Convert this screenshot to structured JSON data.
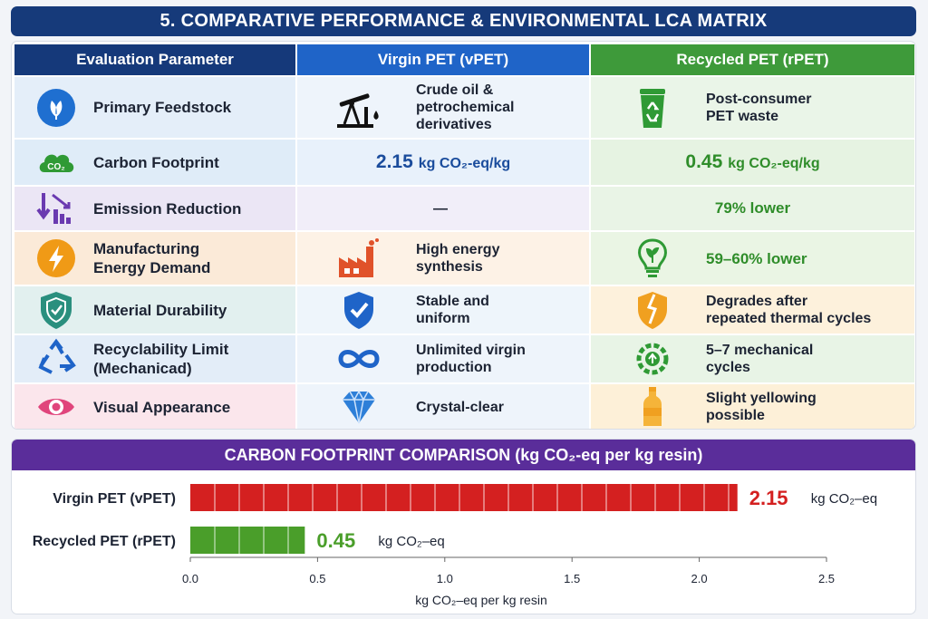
{
  "title": "5. COMPARATIVE PERFORMANCE & ENVIRONMENTAL LCA MATRIX",
  "headers": {
    "parameter": "Evaluation Parameter",
    "virgin": "Virgin PET (vPET)",
    "recycled": "Recycled PET (rPET)"
  },
  "rows": [
    {
      "parameter": [
        "Primary Feedstock"
      ],
      "param_icon": "leaf-icon",
      "virgin": [
        "Crude oil &",
        "petrochemical",
        "derivatives"
      ],
      "virgin_icon": "oil-pump-icon",
      "recycled": [
        "Post-consumer",
        "PET waste"
      ],
      "recycled_icon": "recycle-bin-icon"
    },
    {
      "parameter": [
        "Carbon Footprint"
      ],
      "param_icon": "co2-cloud-icon",
      "virgin_value": "2.15",
      "virgin_unit": "kg CO₂-eq/kg",
      "recycled_value": "0.45",
      "recycled_unit": "kg CO₂-eq/kg"
    },
    {
      "parameter": [
        "Emission Reduction"
      ],
      "param_icon": "downward-trend-icon",
      "virgin": [
        "—"
      ],
      "recycled": [
        "79% lower"
      ]
    },
    {
      "parameter": [
        "Manufacturing",
        "Energy Demand"
      ],
      "param_icon": "lightning-icon",
      "virgin": [
        "High energy",
        "synthesis"
      ],
      "virgin_icon": "factory-icon",
      "recycled": [
        "59–60% lower"
      ],
      "recycled_icon": "eco-bulb-icon"
    },
    {
      "parameter": [
        "Material Durability"
      ],
      "param_icon": "shield-icon",
      "virgin": [
        "Stable and",
        "uniform"
      ],
      "virgin_icon": "shield-check-icon",
      "recycled": [
        "Degrades after",
        "repeated thermal cycles"
      ],
      "recycled_icon": "cracked-shield-icon"
    },
    {
      "parameter": [
        "Recyclability Limit",
        "(Mechanicad)"
      ],
      "param_icon": "recycle-arrows-icon",
      "virgin": [
        "Unlimited virgin",
        "production"
      ],
      "virgin_icon": "infinity-icon",
      "recycled": [
        "5–7 mechanical",
        "cycles"
      ],
      "recycled_icon": "gear-recycle-icon"
    },
    {
      "parameter": [
        "Visual Appearance"
      ],
      "param_icon": "eye-icon",
      "virgin": [
        "Crystal-clear"
      ],
      "virgin_icon": "diamond-icon",
      "recycled": [
        "Slight yellowing",
        "possible"
      ],
      "recycled_icon": "bottle-icon"
    }
  ],
  "chart_data": {
    "type": "bar",
    "orientation": "horizontal",
    "title": "CARBON FOOTPRINT COMPARISON (kg CO₂-eq per kg resin)",
    "categories": [
      "Virgin PET (vPET)",
      "Recycled PET (rPET)"
    ],
    "values": [
      2.15,
      0.45
    ],
    "value_labels": [
      "2.15",
      "0.45"
    ],
    "value_unit": "kg CO₂–eq",
    "colors": [
      "#d42020",
      "#4a9e2a"
    ],
    "xlabel": "kg CO₂–eq per kg resin",
    "xlim": [
      0,
      2.5
    ],
    "xticks": [
      "0.0",
      "0.5",
      "1.0",
      "1.5",
      "2.0",
      "2.5"
    ],
    "grid": false
  },
  "colors": {
    "title_bg": "#163a7a",
    "virgin_header": "#1f64c8",
    "recycled_header": "#3e9a3a",
    "chart_title_bg": "#5a2d9a",
    "virgin_value": "#1a4c9c",
    "recycled_value": "#2f8d2a"
  }
}
